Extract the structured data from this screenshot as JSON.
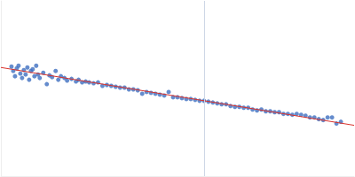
{
  "chart_data": {
    "type": "scatter",
    "xlim": [
      0,
      400
    ],
    "ylim": [
      0,
      200
    ],
    "grid": false,
    "tick_labels": false,
    "vline_x": 230,
    "series": [
      {
        "type": "scatter",
        "color": "#3f6fc0",
        "marker": "circle",
        "x": [
          12,
          14,
          16,
          18,
          20,
          22,
          24,
          26,
          28,
          30,
          32,
          34,
          36,
          38,
          40,
          42,
          44,
          48,
          52,
          55,
          58,
          62,
          65,
          68,
          72,
          75,
          80,
          85,
          88,
          92,
          96,
          100,
          105,
          110,
          115,
          120,
          125,
          130,
          135,
          140,
          145,
          150,
          155,
          160,
          165,
          170,
          175,
          180,
          185,
          190,
          195,
          200,
          205,
          210,
          215,
          220,
          225,
          230,
          235,
          240,
          245,
          250,
          255,
          260,
          265,
          270,
          275,
          280,
          285,
          290,
          295,
          300,
          305,
          310,
          315,
          320,
          325,
          330,
          335,
          340,
          345,
          350,
          355,
          360,
          365,
          370,
          375,
          380,
          385
        ],
        "values": [
          125,
          120,
          114,
          123,
          126,
          117,
          112,
          121,
          116,
          124,
          110,
          120,
          122,
          114,
          126,
          116,
          112,
          118,
          105,
          115,
          113,
          120,
          110,
          114,
          112,
          109,
          111,
          108,
          110,
          107,
          108,
          107,
          106,
          107,
          103,
          104,
          103,
          102,
          101,
          101,
          99,
          99,
          98,
          94,
          96,
          95,
          94,
          93,
          92,
          96,
          90,
          90,
          89,
          88,
          88,
          87,
          86,
          86,
          85,
          84,
          83,
          82,
          82,
          80,
          79,
          79,
          78,
          78,
          76,
          75,
          76,
          74,
          74,
          73,
          73,
          71,
          71,
          70,
          71,
          70,
          69,
          67,
          67,
          65,
          64,
          67,
          67,
          60,
          62
        ]
      },
      {
        "type": "line",
        "color": "#d9312b",
        "line_style": "solid",
        "x": [
          0,
          400
        ],
        "values": [
          124,
          58
        ]
      }
    ]
  }
}
